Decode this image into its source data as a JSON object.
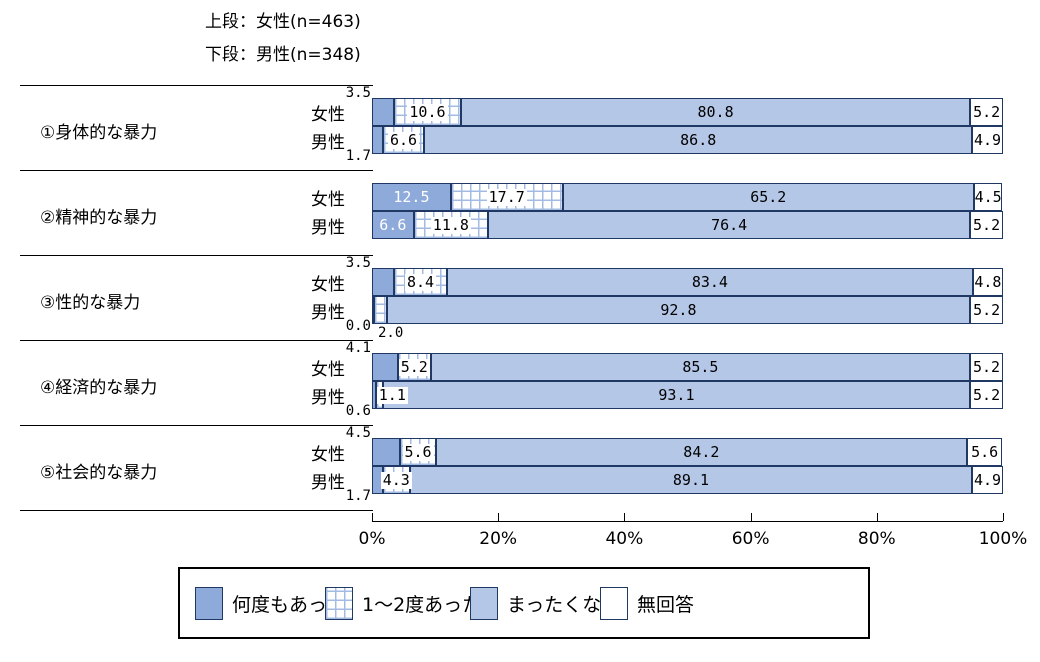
{
  "header": {
    "line1": "上段：女性(n=463)",
    "line2": "下段：男性(n=348)"
  },
  "colors": {
    "many_times": "#8EAADB",
    "never": "#B4C7E7",
    "no_answer": "#FFFFFF",
    "hatch_line": "#A3BBE3",
    "segment_border": "#1F3864",
    "text": "#000000"
  },
  "chart_data": {
    "type": "bar",
    "orientation": "horizontal-stacked",
    "unit": "percent",
    "axis": {
      "min": 0,
      "max": 100,
      "ticks": [
        "0%",
        "20%",
        "40%",
        "60%",
        "80%",
        "100%"
      ]
    },
    "stack_order": [
      "何度もあった",
      "1～2度あった",
      "まったくない",
      "無回答"
    ],
    "groups": [
      {
        "category": "①身体的な暴力",
        "rows": [
          {
            "gender": "女性",
            "values": [
              3.5,
              10.6,
              80.8,
              5.2
            ],
            "first_label": "above"
          },
          {
            "gender": "男性",
            "values": [
              1.7,
              6.6,
              86.8,
              4.9
            ],
            "first_label": "below"
          }
        ]
      },
      {
        "category": "②精神的な暴力",
        "rows": [
          {
            "gender": "女性",
            "values": [
              12.5,
              17.7,
              65.2,
              4.5
            ],
            "first_label": "inside"
          },
          {
            "gender": "男性",
            "values": [
              6.6,
              11.8,
              76.4,
              5.2
            ],
            "first_label": "inside"
          }
        ]
      },
      {
        "category": "③性的な暴力",
        "rows": [
          {
            "gender": "女性",
            "values": [
              3.5,
              8.4,
              83.4,
              4.8
            ],
            "first_label": "above"
          },
          {
            "gender": "男性",
            "values": [
              0.0,
              2.0,
              92.8,
              5.2
            ],
            "first_label": "below",
            "second_label": "below"
          }
        ]
      },
      {
        "category": "④経済的な暴力",
        "rows": [
          {
            "gender": "女性",
            "values": [
              4.1,
              5.2,
              85.5,
              5.2
            ],
            "first_label": "above"
          },
          {
            "gender": "男性",
            "values": [
              0.6,
              1.1,
              93.1,
              5.2
            ],
            "first_label": "below"
          }
        ]
      },
      {
        "category": "⑤社会的な暴力",
        "rows": [
          {
            "gender": "女性",
            "values": [
              4.5,
              5.6,
              84.2,
              5.6
            ],
            "first_label": "above"
          },
          {
            "gender": "男性",
            "values": [
              1.7,
              4.3,
              89.1,
              4.9
            ],
            "first_label": "below"
          }
        ]
      }
    ]
  },
  "legend": {
    "items": [
      {
        "label": "何度もあった",
        "swatch": "solid-dark"
      },
      {
        "label": "1～2度あった",
        "swatch": "hatch"
      },
      {
        "label": "まったくない",
        "swatch": "solid-light"
      },
      {
        "label": "無回答",
        "swatch": "blank"
      }
    ]
  }
}
